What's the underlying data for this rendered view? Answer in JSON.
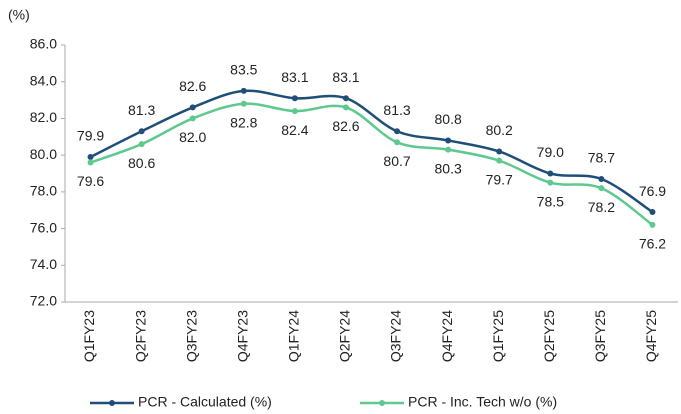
{
  "chart_data": {
    "type": "line",
    "y_unit_label": "(%)",
    "categories": [
      "Q1FY23",
      "Q2FY23",
      "Q3FY23",
      "Q4FY23",
      "Q1FY24",
      "Q2FY24",
      "Q3FY24",
      "Q4FY24",
      "Q1FY25",
      "Q2FY25",
      "Q3FY25",
      "Q4FY25"
    ],
    "series": [
      {
        "name": "PCR - Calculated (%)",
        "color": "#1f4e79",
        "values": [
          79.9,
          81.3,
          82.6,
          83.5,
          83.1,
          83.1,
          81.3,
          80.8,
          80.2,
          79.0,
          78.7,
          76.9
        ],
        "value_labels": [
          "79.9",
          "81.3",
          "82.6",
          "83.5",
          "83.1",
          "83.1",
          "81.3",
          "80.8",
          "80.2",
          "79.0",
          "78.7",
          "76.9"
        ]
      },
      {
        "name": "PCR - Inc. Tech w/o (%)",
        "color": "#5ec98f",
        "values": [
          79.6,
          80.6,
          82.0,
          82.8,
          82.4,
          82.6,
          80.7,
          80.3,
          79.7,
          78.5,
          78.2,
          76.2
        ],
        "value_labels": [
          "79.6",
          "80.6",
          "82.0",
          "82.8",
          "82.4",
          "82.6",
          "80.7",
          "80.3",
          "79.7",
          "78.5",
          "78.2",
          "76.2"
        ]
      }
    ],
    "ylim": [
      72,
      86
    ],
    "yticks": [
      {
        "value": 72,
        "label": "72.0"
      },
      {
        "value": 74,
        "label": "74.0"
      },
      {
        "value": 76,
        "label": "76.0"
      },
      {
        "value": 78,
        "label": "78.0"
      },
      {
        "value": 80,
        "label": "80.0"
      },
      {
        "value": 82,
        "label": "82.0"
      },
      {
        "value": 84,
        "label": "84.0"
      },
      {
        "value": 86,
        "label": "86.0"
      }
    ],
    "grid": false,
    "legend": "bottom"
  }
}
